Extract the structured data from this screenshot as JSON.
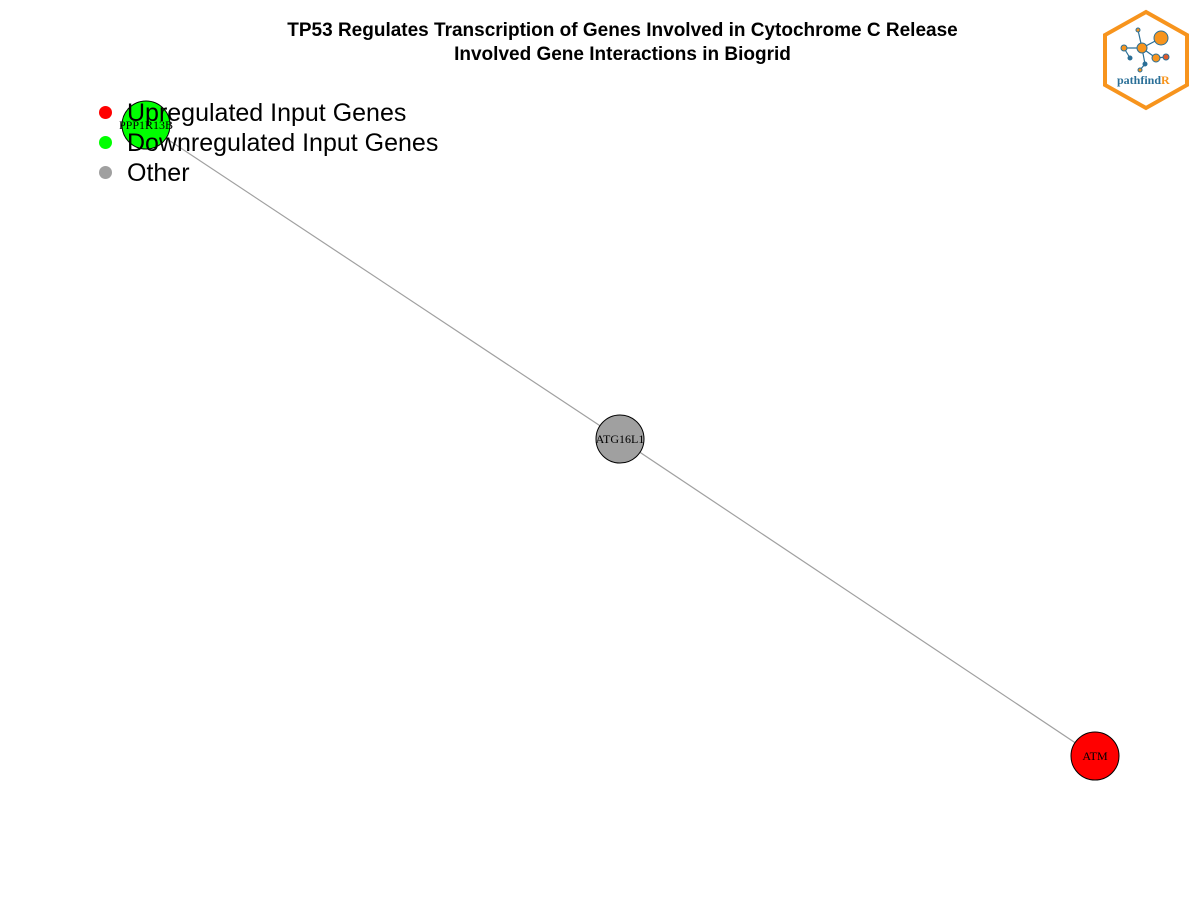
{
  "title": {
    "line1": "TP53 Regulates Transcription of Genes Involved in Cytochrome C Release",
    "line2": "Involved Gene Interactions in Biogrid"
  },
  "logo": {
    "text_main": "pathfind",
    "text_accent": "R",
    "border_color": "#f7941d",
    "text_color": "#2a6f97"
  },
  "legend": [
    {
      "label": "Upregulated Input Genes",
      "color": "#ff0000"
    },
    {
      "label": "Downregulated Input Genes",
      "color": "#00ff00"
    },
    {
      "label": "Other",
      "color": "#a0a0a0"
    }
  ],
  "network": {
    "nodes": [
      {
        "id": "PPP1R13B",
        "label": "PPP1R13B",
        "status": "down",
        "color": "#00ff00"
      },
      {
        "id": "ATG16L1",
        "label": "ATG16L1",
        "status": "other",
        "color": "#a0a0a0"
      },
      {
        "id": "ATM",
        "label": "ATM",
        "status": "up",
        "color": "#ff0000"
      }
    ],
    "edges": [
      {
        "source": "PPP1R13B",
        "target": "ATG16L1"
      },
      {
        "source": "ATG16L1",
        "target": "ATM"
      }
    ],
    "edge_color": "#a0a0a0"
  }
}
